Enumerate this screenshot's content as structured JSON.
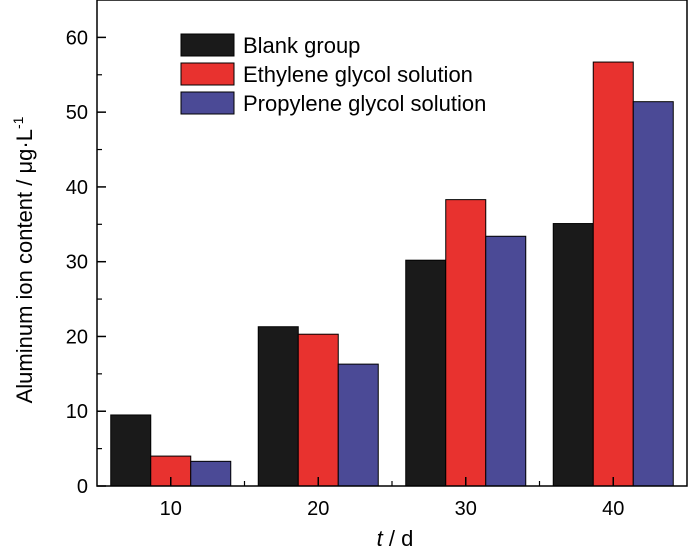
{
  "chart_data": {
    "type": "bar",
    "categories": [
      "10",
      "20",
      "30",
      "40"
    ],
    "series": [
      {
        "name": "Blank group",
        "values": [
          9.5,
          21.3,
          30.2,
          35.1
        ],
        "color": "#1a1a1a"
      },
      {
        "name": "Ethylene glycol solution",
        "values": [
          4.0,
          20.3,
          38.3,
          56.7
        ],
        "color": "#e8322f"
      },
      {
        "name": "Propylene glycol solution",
        "values": [
          3.3,
          16.3,
          33.4,
          51.4
        ],
        "color": "#4b4a96"
      }
    ],
    "xlabel": {
      "italic": "t",
      "rest": " / d"
    },
    "ylabel": {
      "main": "Aluminum ion content / μg·L",
      "sup": "-1"
    },
    "ylim": [
      0,
      65
    ],
    "yticks": [
      "0",
      "10",
      "20",
      "30",
      "40",
      "50",
      "60"
    ],
    "grid": false,
    "legend_position": "top-left"
  }
}
